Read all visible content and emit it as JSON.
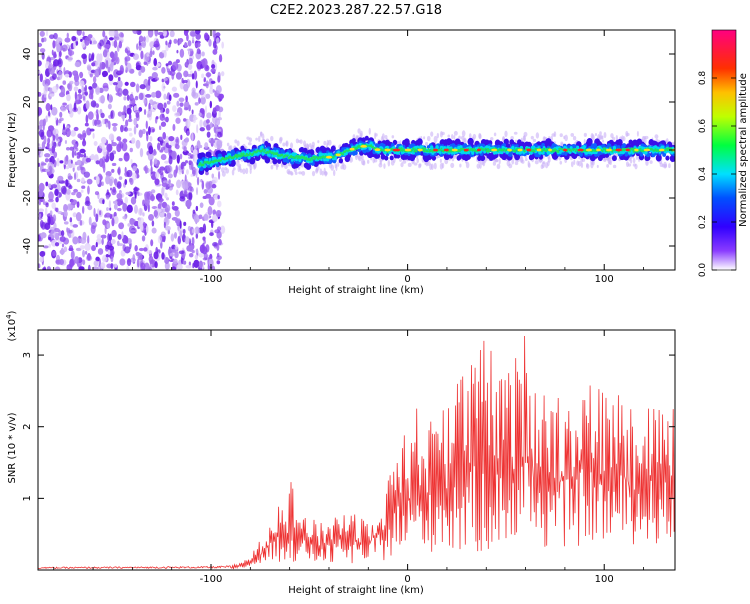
{
  "title": "C2E2.2023.287.22.57.G18",
  "chart_data": [
    {
      "type": "heatmap",
      "xlabel": "Height of straight line (km)",
      "ylabel": "Frequency (Hz)",
      "xlim": [
        -188,
        136
      ],
      "ylim": [
        -50,
        50
      ],
      "xticks": [
        -100,
        0,
        100
      ],
      "yticks": [
        -40,
        -20,
        0,
        20,
        40
      ],
      "noise_region_x": [
        -188,
        -94
      ],
      "signal_ridge": {
        "x": [
          -106,
          -100,
          -94,
          -90,
          -85,
          -80,
          -75,
          -70,
          -65,
          -60,
          -55,
          -50,
          -45,
          -40,
          -35,
          -30,
          -25,
          -20,
          -15,
          -10,
          -5,
          0,
          10,
          20,
          40,
          60,
          80,
          100,
          120,
          136
        ],
        "frequency": [
          -6,
          -5,
          -4,
          -3,
          -2,
          -2,
          0,
          -1,
          -2,
          -3,
          -3,
          -4,
          -3,
          -3,
          -2,
          0,
          1,
          2,
          0,
          0,
          0,
          0,
          0,
          0,
          0,
          0,
          0,
          0,
          0,
          0
        ]
      },
      "colorbar": {
        "label": "Normalized spectral amplitude",
        "range": [
          0.0,
          1.0
        ],
        "ticks": [
          0.0,
          0.2,
          0.4,
          0.6,
          0.8
        ],
        "colors": [
          "#ffffff",
          "#6a00ff",
          "#0000ff",
          "#00ffff",
          "#00ff00",
          "#ffff00",
          "#ff8000",
          "#ff0000",
          "#ff00ff"
        ]
      },
      "grid": false
    },
    {
      "type": "line",
      "xlabel": "Height of straight line (km)",
      "ylabel": "SNR (10 * v/v)",
      "multiplier": "(x10^4)",
      "multiplier_base": "(x10",
      "multiplier_exp": "4",
      "multiplier_close": ")",
      "xlim": [
        -188,
        136
      ],
      "ylim": [
        0,
        3.35
      ],
      "xticks": [
        -100,
        0,
        100
      ],
      "yticks": [
        1,
        2,
        3
      ],
      "color": "#ee3333",
      "envelope": {
        "x": [
          -188,
          -100,
          -90,
          -85,
          -80,
          -75,
          -70,
          -65,
          -60,
          -55,
          -50,
          -45,
          -40,
          -35,
          -30,
          -25,
          -20,
          -15,
          -10,
          -5,
          0,
          5,
          10,
          15,
          20,
          25,
          30,
          35,
          40,
          45,
          50,
          55,
          60,
          65,
          70,
          75,
          80,
          85,
          90,
          95,
          100,
          105,
          110,
          115,
          120,
          125,
          130,
          136
        ],
        "max": [
          0.04,
          0.05,
          0.06,
          0.1,
          0.2,
          0.42,
          0.7,
          1.1,
          1.35,
          0.85,
          0.75,
          0.65,
          0.7,
          0.85,
          0.9,
          0.8,
          0.75,
          1.0,
          1.25,
          1.9,
          2.1,
          2.3,
          2.05,
          2.35,
          2.6,
          3.0,
          2.7,
          3.1,
          3.35,
          2.8,
          2.75,
          3.0,
          3.35,
          2.9,
          2.5,
          2.55,
          2.45,
          2.6,
          2.75,
          2.6,
          2.55,
          2.45,
          2.6,
          2.4,
          2.35,
          2.45,
          2.35,
          2.3
        ],
        "min": [
          0.0,
          0.0,
          0.0,
          0.02,
          0.04,
          0.08,
          0.1,
          0.1,
          0.1,
          0.1,
          0.1,
          0.08,
          0.08,
          0.08,
          0.08,
          0.08,
          0.1,
          0.1,
          0.15,
          0.2,
          0.2,
          0.15,
          0.2,
          0.3,
          0.2,
          0.2,
          0.15,
          0.2,
          0.2,
          0.3,
          0.3,
          0.3,
          0.4,
          0.3,
          0.3,
          0.3,
          0.3,
          0.3,
          0.35,
          0.4,
          0.3,
          0.35,
          0.35,
          0.35,
          0.3,
          0.35,
          0.35,
          0.4
        ]
      },
      "grid": false
    }
  ]
}
